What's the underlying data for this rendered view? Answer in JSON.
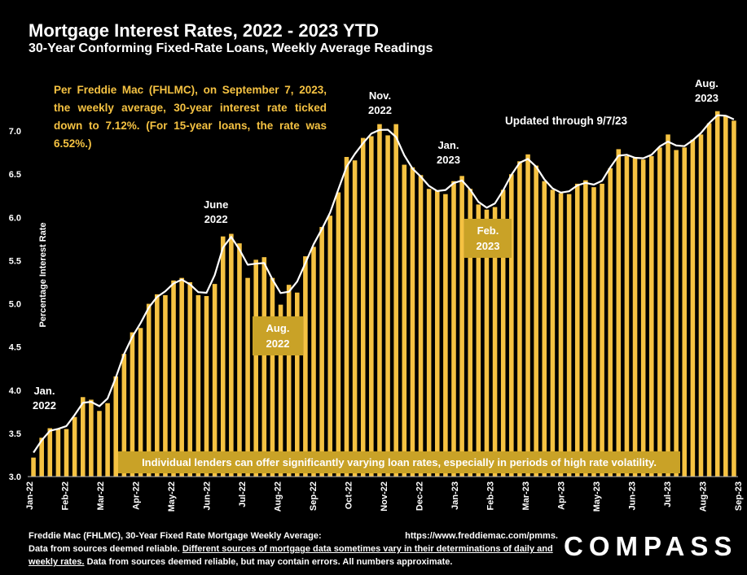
{
  "header": {
    "title": "Mortgage Interest Rates, 2022 - 2023 YTD",
    "subtitle": "30-Year Conforming Fixed-Rate Loans, Weekly Average Readings"
  },
  "note": "Per Freddie Mac (FHLMC), on September 7, 2023, the weekly average, 30-year interest rate ticked down to 7.12%. (For 15-year loans, the rate was 6.52%.)",
  "updated": "Updated through 9/7/23",
  "annotations": {
    "jan2022": "Jan.\n2022",
    "june2022": "June\n2022",
    "aug2022": "Aug.\n2022",
    "nov2022": "Nov.\n2022",
    "jan2023": "Jan.\n2023",
    "feb2023": "Feb.\n2023",
    "aug2023": "Aug.\n2023"
  },
  "banner": "Individual lenders can offer significantly varying loan rates, especially in periods of high rate volatility.",
  "footer": {
    "source_label": "Freddie Mac (FHLMC), 30-Year Fixed Rate Mortgage Weekly Average:",
    "source_url": "https://www.freddiemac.com/pmms.",
    "line2_start": "Data from sources deemed reliable.",
    "underlined": "Different sources of mortgage data sometimes vary in their determinations of daily and weekly rates.",
    "line2_end": "Data from sources deemed reliable, but may contain errors. All numbers approximate."
  },
  "brand": "COMPASS",
  "colors": {
    "bar": "#f5c242",
    "trend": "#ffffff",
    "annotation_box": "#c9a227",
    "background": "#000000"
  },
  "chart_data": {
    "type": "bar",
    "ylabel": "Percentage Interest  Rate",
    "ylim": [
      3.0,
      7.5
    ],
    "yticks": [
      "3.0",
      "3.5",
      "4.0",
      "4.5",
      "5.0",
      "5.5",
      "6.0",
      "6.5",
      "7.0"
    ],
    "xticks": [
      "Jan-22",
      "Feb-22",
      "Mar-22",
      "Apr-22",
      "May-22",
      "Jun-22",
      "Jul-22",
      "Aug-22",
      "Sep-22",
      "Oct-22",
      "Nov-22",
      "Dec-22",
      "Jan-23",
      "Feb-23",
      "Mar-23",
      "Apr-23",
      "May-23",
      "Jun-23",
      "Jul-23",
      "Aug-23",
      "Sep-23"
    ],
    "series": [
      {
        "values": [
          3.22,
          3.45,
          3.56,
          3.55,
          3.55,
          3.69,
          3.92,
          3.89,
          3.76,
          3.85,
          4.16,
          4.42,
          4.67,
          4.72,
          5.0,
          5.11,
          5.1,
          5.27,
          5.3,
          5.25,
          5.1,
          5.09,
          5.23,
          5.78,
          5.81,
          5.7,
          5.3,
          5.51,
          5.54,
          5.3,
          4.99,
          5.22,
          5.13,
          5.55,
          5.66,
          5.89,
          6.02,
          6.29,
          6.7,
          6.66,
          6.92,
          6.94,
          7.08,
          6.95,
          7.08,
          6.61,
          6.58,
          6.49,
          6.33,
          6.31,
          6.27,
          6.42,
          6.48,
          6.33,
          6.15,
          6.09,
          6.12,
          6.32,
          6.5,
          6.65,
          6.73,
          6.6,
          6.42,
          6.32,
          6.28,
          6.27,
          6.39,
          6.43,
          6.35,
          6.39,
          6.57,
          6.79,
          6.71,
          6.69,
          6.67,
          6.71,
          6.81,
          6.96,
          6.78,
          6.81,
          6.9,
          6.96,
          7.09,
          7.23,
          7.18,
          7.12
        ]
      }
    ],
    "annotation_dates": {
      "jan2022": "Jan-22",
      "june2022": "Jun-22",
      "aug2022": "Aug-22",
      "nov2022": "Nov-22",
      "jan2023": "Jan-23",
      "feb2023": "Feb-23",
      "aug2023": "Aug-23"
    }
  }
}
